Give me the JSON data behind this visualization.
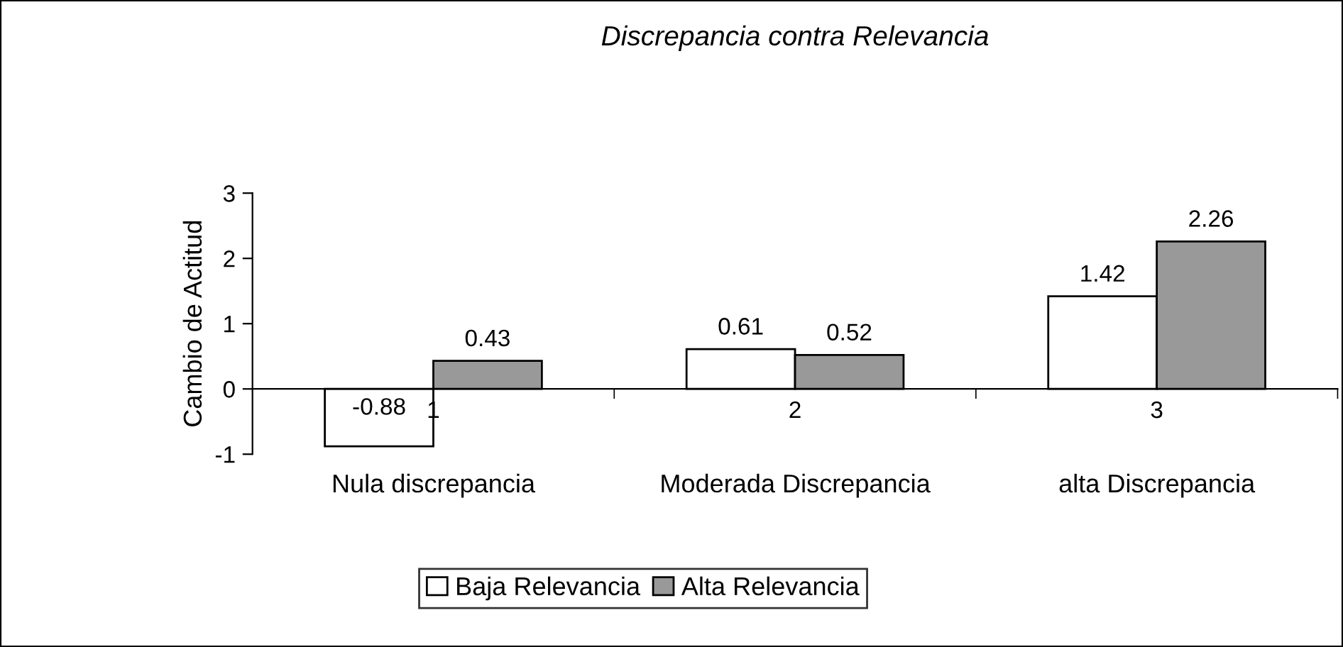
{
  "chart_data": {
    "type": "bar",
    "title": "Discrepancia contra Relevancia",
    "ylabel": "Cambio de Actitud",
    "categories": [
      "1",
      "2",
      "3"
    ],
    "series": [
      {
        "name": "Baja Relevancia",
        "color": "#ffffff",
        "values": [
          -0.88,
          0.61,
          1.42
        ]
      },
      {
        "name": "Alta Relevancia",
        "color": "#999999",
        "values": [
          0.43,
          0.52,
          2.26
        ]
      }
    ],
    "annotations": [
      "Nula discrepancia",
      "Moderada Discrepancia",
      "alta Discrepancia"
    ],
    "ylim": [
      -1,
      3
    ],
    "yticks": [
      -1,
      0,
      1,
      2,
      3
    ],
    "grid": false,
    "legend": "bottom",
    "data_labels": true
  }
}
